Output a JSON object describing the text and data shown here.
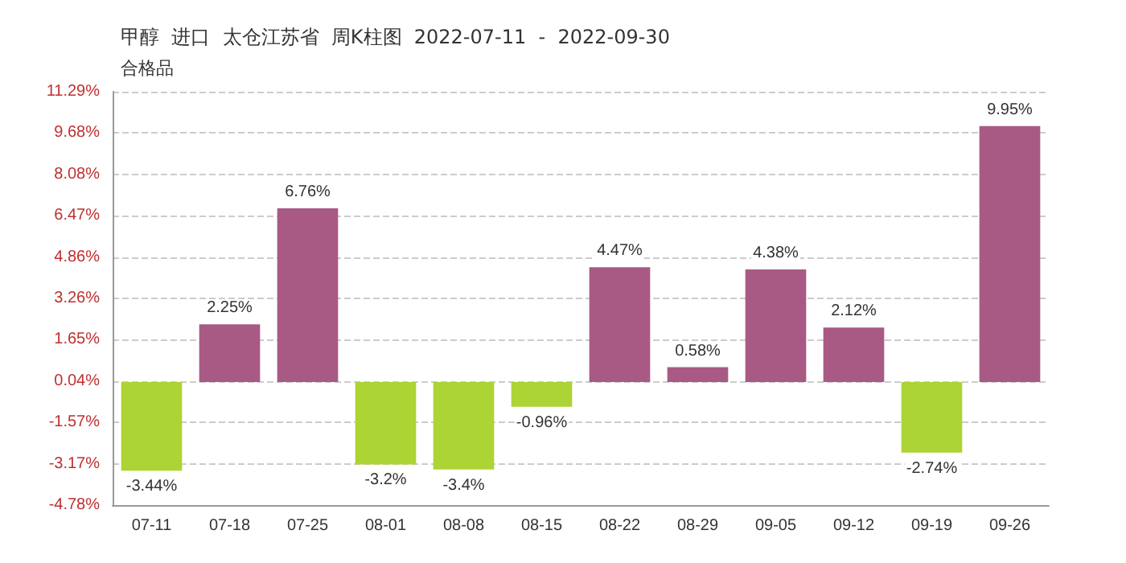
{
  "chart_data": {
    "type": "bar",
    "title": "甲醇  进口  太仓江苏省  周K柱图  2022-07-11  -  2022-09-30",
    "subtitle": "合格品",
    "categories": [
      "07-11",
      "07-18",
      "07-25",
      "08-01",
      "08-08",
      "08-15",
      "08-22",
      "08-29",
      "09-05",
      "09-12",
      "09-19",
      "09-26"
    ],
    "values": [
      -3.44,
      2.25,
      6.76,
      -3.2,
      -3.4,
      -0.96,
      4.47,
      0.58,
      4.38,
      2.12,
      -2.74,
      9.95
    ],
    "value_labels": [
      "-3.44%",
      "2.25%",
      "6.76%",
      "-3.2%",
      "-3.4%",
      "-0.96%",
      "4.47%",
      "0.58%",
      "4.38%",
      "2.12%",
      "-2.74%",
      "9.95%"
    ],
    "colors": [
      "#acd434",
      "#a85a84",
      "#a85a84",
      "#acd434",
      "#acd434",
      "#acd434",
      "#a85a84",
      "#a85a84",
      "#a85a84",
      "#a85a84",
      "#acd434",
      "#a85a84"
    ],
    "ylim": [
      -4.78,
      11.29
    ],
    "yticks": [
      {
        "value": 11.29,
        "label": "11.29%"
      },
      {
        "value": 9.68,
        "label": "9.68%"
      },
      {
        "value": 8.08,
        "label": "8.08%"
      },
      {
        "value": 6.47,
        "label": "6.47%"
      },
      {
        "value": 4.86,
        "label": "4.86%"
      },
      {
        "value": 3.26,
        "label": "3.26%"
      },
      {
        "value": 1.65,
        "label": "1.65%"
      },
      {
        "value": 0.04,
        "label": "0.04%"
      },
      {
        "value": -1.57,
        "label": "-1.57%"
      },
      {
        "value": -3.17,
        "label": "-3.17%"
      },
      {
        "value": -4.78,
        "label": "-4.78%"
      }
    ],
    "grid": "y"
  }
}
